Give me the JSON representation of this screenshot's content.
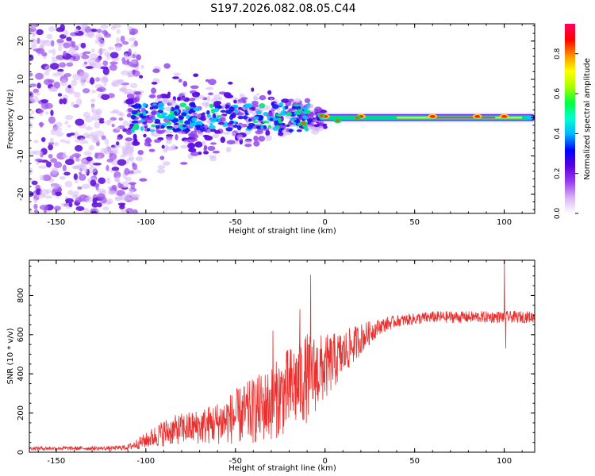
{
  "title": "S197.2026.082.08.05.C44",
  "chart_data": [
    {
      "type": "heatmap",
      "title": "S197.2026.082.08.05.C44",
      "xlabel": "Height of straight line (km)",
      "ylabel": "Frequency (Hz)",
      "xlim": [
        -165,
        117
      ],
      "ylim": [
        -25,
        24.5
      ],
      "xticks": [
        -150,
        -100,
        -50,
        0,
        50,
        100
      ],
      "yticks": [
        -20,
        -10,
        0,
        10,
        20
      ],
      "colorbar": {
        "label": "Normalized spectral amplitude",
        "range": [
          0,
          0.95
        ],
        "ticks": [
          "0.0",
          "0.2",
          "0.4",
          "0.6",
          "0.8"
        ],
        "colors": [
          "#ffffff",
          "#d9b3f5",
          "#9a3cf0",
          "#5a00e0",
          "#0000ff",
          "#00b4ff",
          "#00ffd0",
          "#00ff40",
          "#a8ff00",
          "#ffff00",
          "#ff9000",
          "#ff0000",
          "#ff0060"
        ]
      },
      "features": {
        "noise_region_km": [
          -165,
          -110
        ],
        "signal_band_hz": [
          -1.5,
          1.5
        ],
        "signal_onset_km": -110,
        "strong_peak_km": [
          0,
          20,
          60,
          85,
          100
        ]
      }
    },
    {
      "type": "line",
      "xlabel": "Height of straight line (km)",
      "ylabel": "SNR (10 * v/v)",
      "xlim": [
        -165,
        117
      ],
      "ylim": [
        0,
        980
      ],
      "xticks": [
        -150,
        -100,
        -50,
        0,
        50,
        100
      ],
      "yticks": [
        0,
        200,
        400,
        600,
        800
      ],
      "color": "#e8302e",
      "envelope": {
        "x": [
          -165,
          -120,
          -110,
          -100,
          -90,
          -80,
          -70,
          -60,
          -50,
          -40,
          -30,
          -20,
          -10,
          0,
          10,
          20,
          30,
          40,
          50,
          60,
          70,
          80,
          90,
          100,
          110,
          117
        ],
        "mean": [
          20,
          20,
          25,
          60,
          100,
          120,
          130,
          150,
          180,
          210,
          250,
          320,
          380,
          430,
          500,
          580,
          640,
          670,
          680,
          690,
          690,
          690,
          690,
          690,
          690,
          690
        ],
        "spread": [
          10,
          10,
          15,
          40,
          70,
          80,
          90,
          110,
          140,
          170,
          190,
          220,
          230,
          170,
          120,
          80,
          40,
          30,
          30,
          30,
          30,
          30,
          30,
          30,
          30,
          30
        ]
      },
      "spikes": [
        {
          "x": -8,
          "y": 905
        },
        {
          "x": -14,
          "y": 730
        },
        {
          "x": -29,
          "y": 620
        },
        {
          "x": 100,
          "y": 970
        },
        {
          "x": 100.8,
          "y": 530
        }
      ]
    }
  ]
}
